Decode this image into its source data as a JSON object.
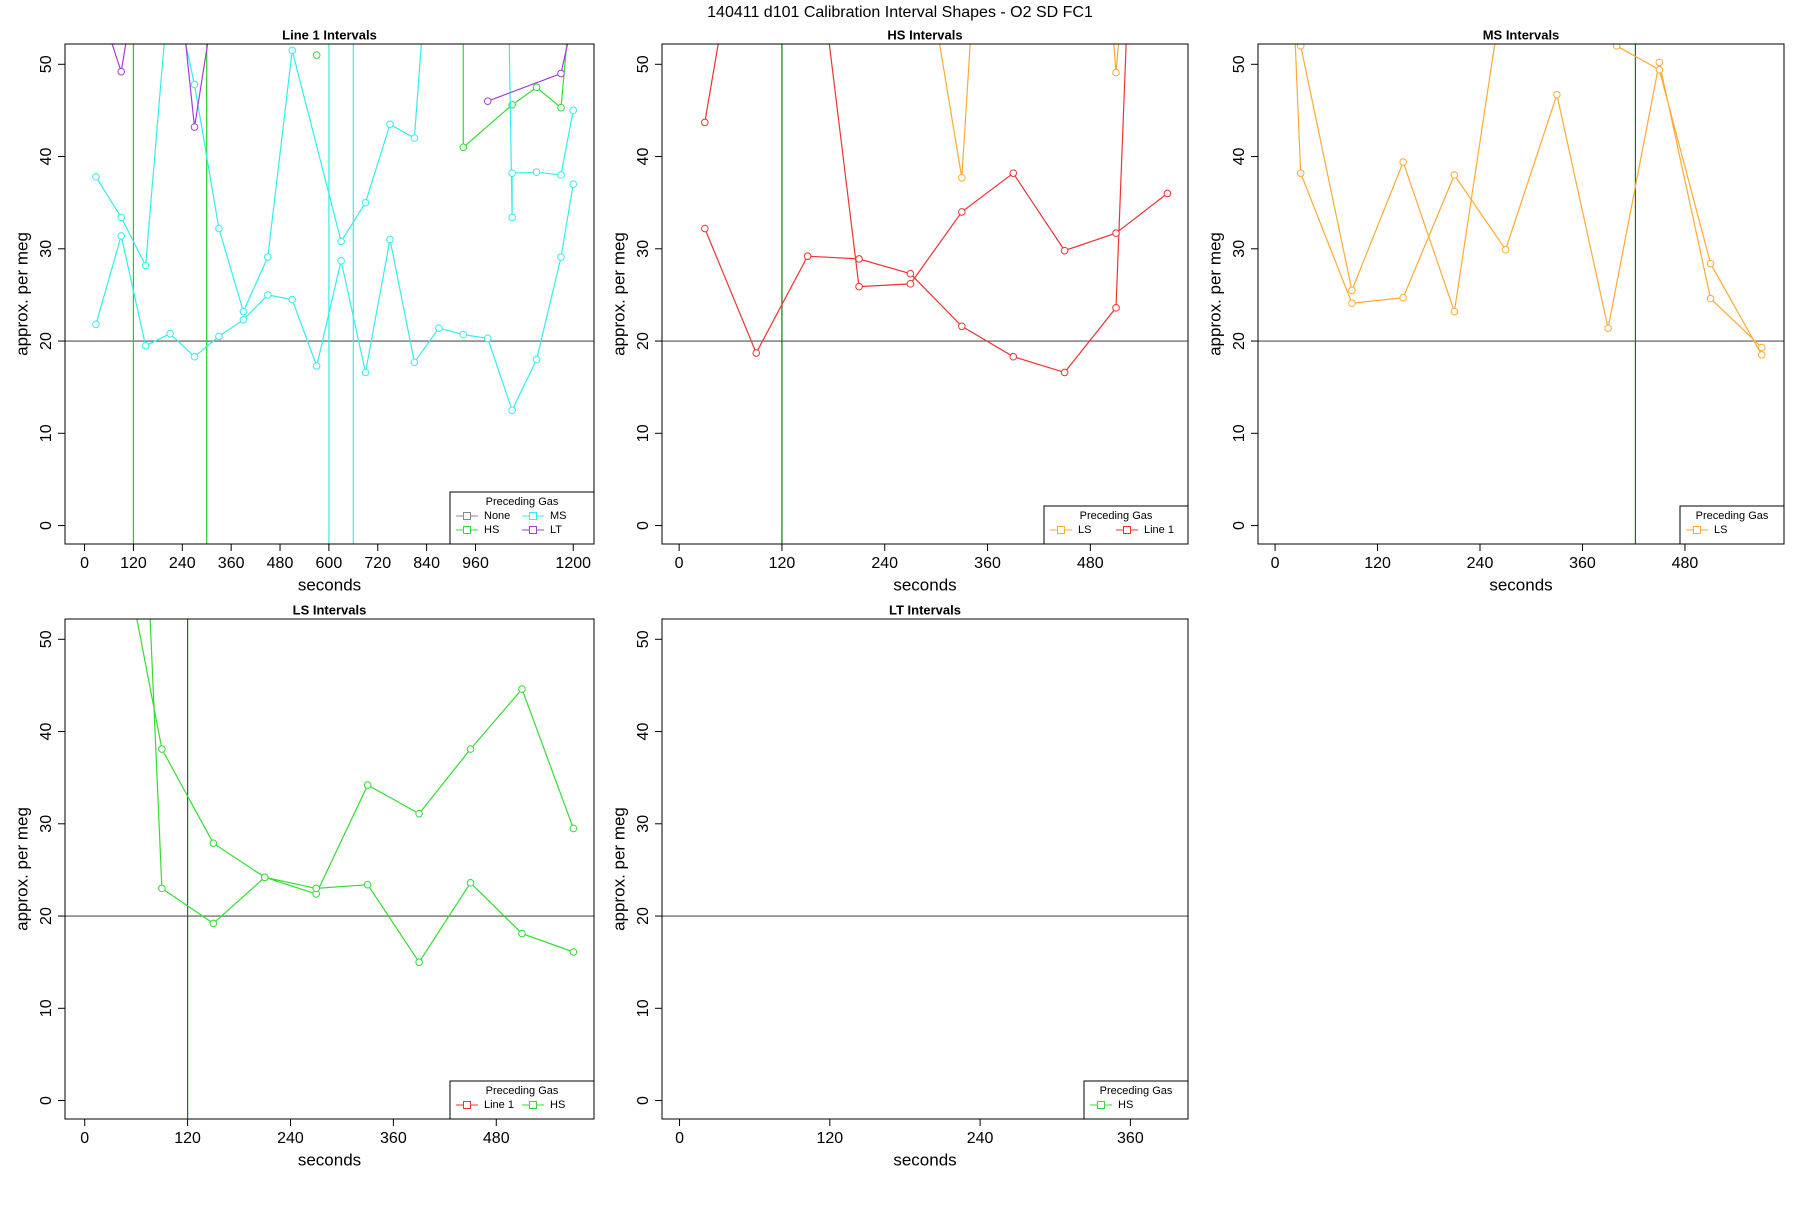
{
  "title": "140411   d101   Calibration Interval Shapes - O2 SD FC1",
  "chart_data": [
    {
      "type": "line",
      "title": "Line 1 Intervals",
      "xlabel": "seconds",
      "ylabel": "approx. per meg",
      "xlim": [
        -48,
        1251
      ],
      "ylim": [
        -2,
        52.2
      ],
      "xticks": [
        0,
        120,
        240,
        360,
        480,
        600,
        720,
        840,
        960,
        1200
      ],
      "yticks": [
        0,
        10,
        20,
        30,
        40,
        50
      ],
      "hline": 20,
      "hline_color": "#555555",
      "vlines": [
        {
          "x": 120,
          "color": "#22cc22"
        },
        {
          "x": 300,
          "color": "#22cc22"
        },
        {
          "x": 600,
          "color": "#33eeee"
        },
        {
          "x": 660,
          "color": "#33eeee"
        }
      ],
      "legend_title": "Preceding Gas",
      "legend_ncol": 2,
      "legend_position": "bottomright",
      "series": [
        {
          "name": "None",
          "color": "#888888",
          "x": [],
          "values": []
        },
        {
          "name": "HS",
          "color": "#33dd33",
          "x": [
            570,
            null,
            930,
            930,
            1050,
            1110,
            1170,
            1200
          ],
          "values": [
            51,
            null,
            60,
            41,
            45.6,
            47.5,
            45.3,
            60
          ]
        },
        {
          "name": "MS",
          "color": "#33eeee",
          "x": [
            28,
            90,
            150,
            210,
            270,
            330,
            390,
            450,
            510,
            570,
            630,
            690,
            750,
            810,
            870,
            930,
            990,
            1050,
            1110,
            1170,
            1200,
            null,
            28,
            90,
            150,
            210,
            270,
            330,
            390,
            450,
            510,
            630,
            690,
            750,
            810,
            840,
            null,
            1040,
            1050,
            1050,
            1110,
            1170,
            1200
          ],
          "values": [
            21.8,
            31.4,
            19.5,
            20.8,
            18.3,
            20.5,
            22.3,
            25,
            24.5,
            17.3,
            28.7,
            16.6,
            31,
            17.7,
            21.4,
            20.7,
            20.3,
            12.5,
            18,
            29.1,
            37,
            null,
            37.8,
            33.4,
            28.2,
            60,
            47.8,
            32.2,
            23.2,
            29.1,
            51.5,
            30.8,
            35,
            43.5,
            42,
            60,
            null,
            60,
            33.4,
            38.2,
            38.3,
            38,
            45
          ]
        },
        {
          "name": "LT",
          "color": "#a63dd8",
          "x": [
            10,
            90,
            130,
            null,
            230,
            270,
            330,
            null,
            990,
            1170,
            1200
          ],
          "values": [
            60,
            49.2,
            60,
            null,
            60,
            43.2,
            60,
            null,
            46,
            49,
            55
          ]
        }
      ]
    },
    {
      "type": "line",
      "title": "HS Intervals",
      "xlabel": "seconds",
      "ylabel": "approx. per meg",
      "xlim": [
        -20,
        594
      ],
      "ylim": [
        -2,
        52.2
      ],
      "xticks": [
        0,
        120,
        240,
        360,
        480
      ],
      "yticks": [
        0,
        10,
        20,
        30,
        40,
        50
      ],
      "hline": 20,
      "hline_color": "#555555",
      "vlines": [
        {
          "x": 120,
          "color": "#117711"
        }
      ],
      "legend_title": "Preceding Gas",
      "legend_ncol": 2,
      "legend_position": "bottomright",
      "series": [
        {
          "name": "LS",
          "color": "#ffaa33",
          "x": [
            290,
            330,
            345,
            null,
            505,
            510,
            520
          ],
          "values": [
            60,
            37.7,
            60,
            null,
            55,
            49.1,
            60
          ]
        },
        {
          "name": "Line 1",
          "color": "#ee3333",
          "x": [
            30,
            90,
            150,
            210,
            270,
            330,
            390,
            450,
            510,
            525,
            null,
            30,
            60,
            null,
            165,
            210,
            270,
            330,
            390,
            450,
            510,
            570
          ],
          "values": [
            32.2,
            18.7,
            29.2,
            28.9,
            27.3,
            21.6,
            18.3,
            16.6,
            23.6,
            60,
            null,
            43.7,
            60,
            null,
            60,
            25.9,
            26.2,
            34,
            38.2,
            29.8,
            31.7,
            36
          ]
        }
      ]
    },
    {
      "type": "line",
      "title": "MS Intervals",
      "xlabel": "seconds",
      "ylabel": "approx. per meg",
      "xlim": [
        -20,
        596
      ],
      "ylim": [
        -2,
        52.2
      ],
      "xticks": [
        0,
        120,
        240,
        360,
        480
      ],
      "yticks": [
        0,
        10,
        20,
        30,
        40,
        50
      ],
      "hline": 20,
      "hline_color": "#555555",
      "vlines": [
        {
          "x": 422,
          "color": "#117711"
        }
      ],
      "legend_title": "Preceding Gas",
      "legend_ncol": 1,
      "legend_position": "bottomright",
      "series": [
        {
          "name": "LS",
          "color": "#ffaa33",
          "x": [
            20,
            30,
            90,
            150,
            210,
            270,
            330,
            390,
            450,
            510,
            570,
            null,
            30,
            90,
            150,
            210,
            270,
            null,
            400,
            450,
            510,
            570
          ],
          "values": [
            60,
            38.2,
            24.1,
            24.7,
            38,
            29.9,
            46.7,
            21.4,
            50.2,
            24.6,
            19.3,
            null,
            52,
            25.5,
            39.4,
            23.2,
            60,
            null,
            52,
            49.4,
            28.4,
            18.5
          ]
        }
      ]
    },
    {
      "type": "line",
      "title": "LS Intervals",
      "xlabel": "seconds",
      "ylabel": "approx. per meg",
      "xlim": [
        -23,
        594
      ],
      "ylim": [
        -2,
        52.2
      ],
      "xticks": [
        0,
        120,
        240,
        360,
        480
      ],
      "yticks": [
        0,
        10,
        20,
        30,
        40,
        50
      ],
      "hline": 20,
      "hline_color": "#555555",
      "vlines": [
        {
          "x": 120,
          "color": "#117711"
        }
      ],
      "legend_title": "Preceding Gas",
      "legend_ncol": 2,
      "legend_position": "bottomright",
      "series": [
        {
          "name": "Line 1",
          "color": "#ee3333",
          "x": [],
          "values": []
        },
        {
          "name": "HS",
          "color": "#33dd33",
          "x": [
            55,
            90,
            150,
            210,
            270,
            330,
            390,
            450,
            510,
            570,
            null,
            75,
            90,
            150,
            210,
            270,
            330,
            390,
            450,
            510,
            570
          ],
          "values": [
            55,
            38.1,
            27.9,
            24.2,
            22.4,
            34.2,
            31.1,
            38.1,
            44.6,
            29.5,
            null,
            55,
            23,
            19.2,
            24.2,
            23,
            23.4,
            15,
            23.6,
            18.1,
            16.1
          ]
        }
      ]
    },
    {
      "type": "line",
      "title": "LT Intervals",
      "xlabel": "seconds",
      "ylabel": "approx. per meg",
      "xlim": [
        -14,
        406
      ],
      "ylim": [
        -2,
        52.2
      ],
      "xticks": [
        0,
        120,
        240,
        360
      ],
      "yticks": [
        0,
        10,
        20,
        30,
        40,
        50
      ],
      "hline": 20,
      "hline_color": "#555555",
      "vlines": [],
      "legend_title": "Preceding Gas",
      "legend_ncol": 1,
      "legend_position": "bottomright",
      "series": [
        {
          "name": "HS",
          "color": "#33dd33",
          "x": [],
          "values": []
        }
      ]
    }
  ]
}
